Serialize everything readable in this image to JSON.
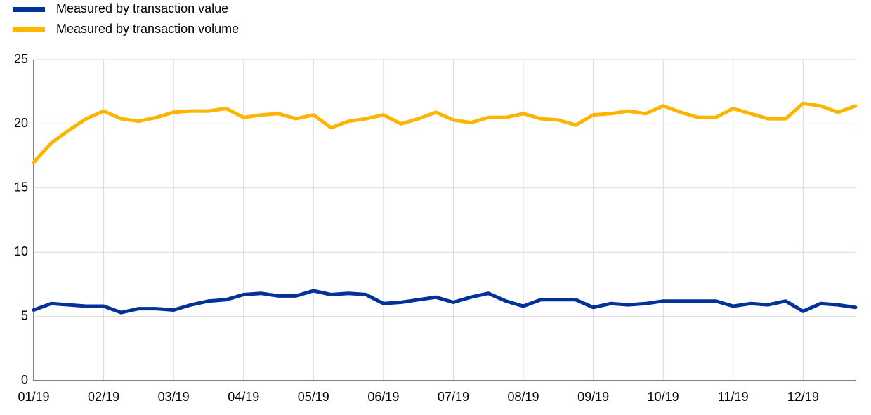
{
  "chart_data": {
    "type": "line",
    "categories": [
      "01/19",
      null,
      null,
      null,
      "02/19",
      null,
      null,
      null,
      "03/19",
      null,
      null,
      null,
      "04/19",
      null,
      null,
      null,
      "05/19",
      null,
      null,
      null,
      "06/19",
      null,
      null,
      null,
      "07/19",
      null,
      null,
      null,
      "08/19",
      null,
      null,
      null,
      "09/19",
      null,
      null,
      null,
      "10/19",
      null,
      null,
      null,
      "11/19",
      null,
      null,
      null,
      "12/19",
      null,
      null,
      null
    ],
    "series": [
      {
        "name": "Measured by transaction value",
        "color": "#003299",
        "values": [
          5.5,
          6.0,
          5.9,
          5.8,
          5.8,
          5.3,
          5.6,
          5.6,
          5.5,
          5.9,
          6.2,
          6.3,
          6.7,
          6.8,
          6.6,
          6.6,
          7.0,
          6.7,
          6.8,
          6.7,
          6.0,
          6.1,
          6.3,
          6.5,
          6.1,
          6.5,
          6.8,
          6.2,
          5.8,
          6.3,
          6.3,
          6.3,
          5.7,
          6.0,
          5.9,
          6.0,
          6.2,
          6.2,
          6.2,
          6.2,
          5.8,
          6.0,
          5.9,
          6.2,
          5.4,
          6.0,
          5.9,
          5.7
        ]
      },
      {
        "name": "Measured by transaction volume",
        "color": "#ffb400",
        "values": [
          17.0,
          18.5,
          19.5,
          20.4,
          21.0,
          20.4,
          20.2,
          20.5,
          20.9,
          21.0,
          21.0,
          21.2,
          20.5,
          20.7,
          20.8,
          20.4,
          20.7,
          19.7,
          20.2,
          20.4,
          20.7,
          20.0,
          20.4,
          20.9,
          20.3,
          20.1,
          20.5,
          20.5,
          20.8,
          20.4,
          20.3,
          19.9,
          20.7,
          20.8,
          21.0,
          20.8,
          21.4,
          20.9,
          20.5,
          20.5,
          21.2,
          20.8,
          20.4,
          20.4,
          21.6,
          21.4,
          20.9,
          21.4
        ]
      }
    ],
    "ylim": [
      0,
      25
    ],
    "yticks": [
      0,
      5,
      10,
      15,
      20,
      25
    ],
    "grid": true,
    "legend": "top-left"
  }
}
